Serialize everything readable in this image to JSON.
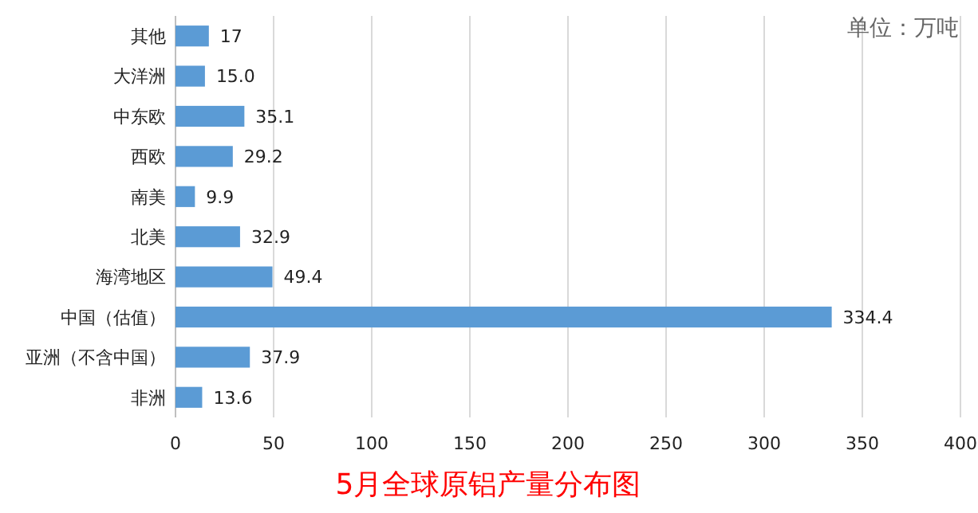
{
  "chart_data": {
    "type": "bar",
    "orientation": "horizontal",
    "title": "5月全球原铝产量分布图",
    "annotations": [
      "单位：万吨"
    ],
    "categories": [
      "其他",
      "大洋洲",
      "中东欧",
      "西欧",
      "南美",
      "北美",
      "海湾地区",
      "中国（估值）",
      "亚洲（不含中国）",
      "非洲"
    ],
    "values": [
      17,
      15.0,
      35.1,
      29.2,
      9.9,
      32.9,
      49.4,
      334.4,
      37.9,
      13.6
    ],
    "value_labels": [
      "17",
      "15.0",
      "35.1",
      "29.2",
      "9.9",
      "32.9",
      "49.4",
      "334.4",
      "37.9",
      "13.6"
    ],
    "color": "#5b9bd5",
    "xlim": [
      0,
      400
    ],
    "xticks": [
      0,
      50,
      100,
      150,
      200,
      250,
      300,
      350,
      400
    ],
    "grid": "x"
  }
}
